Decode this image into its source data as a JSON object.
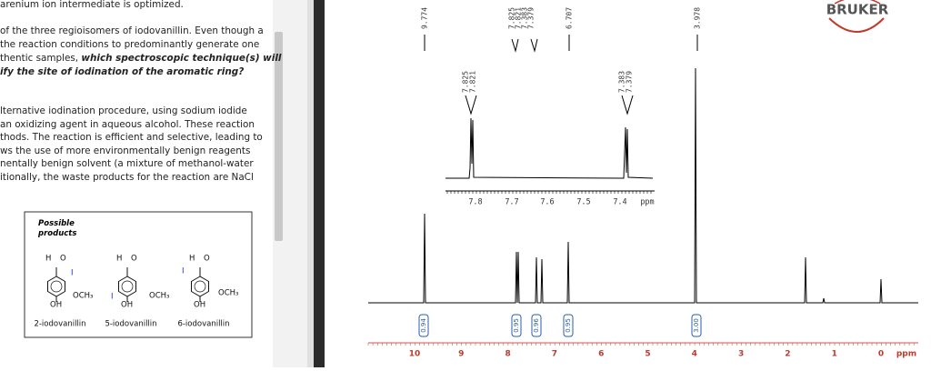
{
  "document": {
    "intro": "arenium ion intermediate is optimized.",
    "paragraph_1": {
      "lines": [
        "of the three regioisomers of iodovanillin. Even though a",
        "the reaction conditions to predominantly generate one",
        "thentic samples, "
      ],
      "emphasis": [
        "which spectroscopic technique(s) will",
        "ify the site of iodination of the aromatic ring?"
      ]
    },
    "paragraph_2": [
      "lternative iodination procedure, using sodium iodide",
      " an oxidizing agent in aqueous alcohol. These reaction",
      "thods. The reaction is efficient and selective, leading to",
      "ws the use of more environmentally benign reagents",
      "nentally benign solvent (a mixture of methanol-water",
      "itionally, the waste products for the reaction are NaCl"
    ],
    "products_box": {
      "title": "Possible products",
      "structures": [
        {
          "name": "2-iodovanillin",
          "atoms": [
            "H",
            "O",
            "I",
            "OCH₃",
            "OH"
          ]
        },
        {
          "name": "5-iodovanillin",
          "atoms": [
            "H",
            "O",
            "I",
            "OCH₃",
            "OH"
          ]
        },
        {
          "name": "6-iodovanillin",
          "atoms": [
            "H",
            "O",
            "I",
            "OCH₃",
            "OH"
          ]
        }
      ]
    }
  },
  "spectrum": {
    "logo": "BRUKER",
    "peak_labels": [
      "9.774",
      "7.825",
      "7.821",
      "7.383",
      "7.379",
      "6.707",
      "3.978"
    ],
    "inset_peak_labels": [
      "7.825",
      "7.821",
      "7.383",
      "7.379"
    ],
    "inset_ticks": [
      "7.8",
      "7.7",
      "7.6",
      "7.5",
      "7.4",
      "ppm"
    ],
    "axis_ticks": [
      "10",
      "9",
      "8",
      "7",
      "6",
      "5",
      "4",
      "3",
      "2",
      "1",
      "0",
      "ppm"
    ],
    "integrals": [
      "0.94",
      "0.95",
      "0.96",
      "0.95",
      "3.00"
    ]
  }
}
